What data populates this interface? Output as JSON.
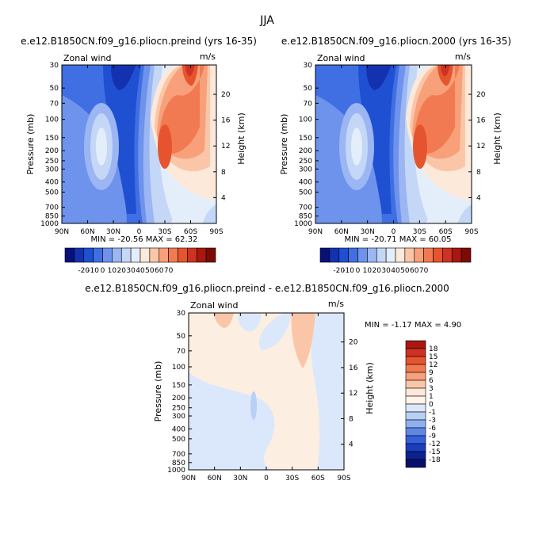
{
  "figure_title": "JJA",
  "chart_data": [
    {
      "type": "heatmap",
      "title": "e.e12.B1850CN.f09_g16.pliocn.preind (yrs 16-35)",
      "left_label": "Zonal wind",
      "right_label": "m/s",
      "stats": "MIN = -20.56   MAX = 62.32",
      "ylabel": "Pressure (mb)",
      "y2label": "Height (km)",
      "x_ticks": [
        "90N",
        "60N",
        "30N",
        "0",
        "30S",
        "60S",
        "90S"
      ],
      "y_ticks": [
        "30",
        "50",
        "70",
        "100",
        "150",
        "200",
        "250",
        "300",
        "400",
        "500",
        "700",
        "850",
        "1000"
      ],
      "y2_ticks": [
        "20",
        "16",
        "12",
        "8",
        "4"
      ],
      "colorbar_labels": [
        "-20",
        "-10",
        "0",
        "10",
        "20",
        "30",
        "40",
        "50",
        "60",
        "70"
      ],
      "colorbar_colors": [
        "#08107a",
        "#1432b0",
        "#1f50d2",
        "#3f6fe2",
        "#6e93ec",
        "#9bb6f2",
        "#c4d7f7",
        "#e4eefb",
        "#fde9da",
        "#fbc6a8",
        "#f7a07a",
        "#f27a52",
        "#e6542f",
        "#cf3220",
        "#a8180f",
        "#7d0a05"
      ],
      "ylim": [
        1000,
        30
      ],
      "xlim": [
        "90N",
        "90S"
      ]
    },
    {
      "type": "heatmap",
      "title": "e.e12.B1850CN.f09_g16.pliocn.2000 (yrs 16-35)",
      "left_label": "Zonal wind",
      "right_label": "m/s",
      "stats": "MIN = -20.71   MAX = 60.05",
      "ylabel": "Pressure (mb)",
      "y2label": "Height (km)",
      "x_ticks": [
        "90N",
        "60N",
        "30N",
        "0",
        "30S",
        "60S",
        "90S"
      ],
      "y_ticks": [
        "30",
        "50",
        "70",
        "100",
        "150",
        "200",
        "250",
        "300",
        "400",
        "500",
        "700",
        "850",
        "1000"
      ],
      "y2_ticks": [
        "20",
        "16",
        "12",
        "8",
        "4"
      ],
      "colorbar_labels": [
        "-20",
        "-10",
        "0",
        "10",
        "20",
        "30",
        "40",
        "50",
        "60",
        "70"
      ],
      "colorbar_colors": [
        "#08107a",
        "#1432b0",
        "#1f50d2",
        "#3f6fe2",
        "#6e93ec",
        "#9bb6f2",
        "#c4d7f7",
        "#e4eefb",
        "#fde9da",
        "#fbc6a8",
        "#f7a07a",
        "#f27a52",
        "#e6542f",
        "#cf3220",
        "#a8180f",
        "#7d0a05"
      ],
      "ylim": [
        1000,
        30
      ],
      "xlim": [
        "90N",
        "90S"
      ]
    },
    {
      "type": "heatmap",
      "title": "e.e12.B1850CN.f09_g16.pliocn.preind - e.e12.B1850CN.f09_g16.pliocn.2000",
      "left_label": "Zonal wind",
      "right_label": "m/s",
      "stats": "MIN =   -1.17   MAX =    4.90",
      "ylabel": "Pressure (mb)",
      "y2label": "Height (km)",
      "x_ticks": [
        "90N",
        "60N",
        "30N",
        "0",
        "30S",
        "60S",
        "90S"
      ],
      "y_ticks": [
        "30",
        "50",
        "70",
        "100",
        "150",
        "200",
        "250",
        "300",
        "400",
        "500",
        "700",
        "850",
        "1000"
      ],
      "y2_ticks": [
        "20",
        "16",
        "12",
        "8",
        "4"
      ],
      "colorbar_labels": [
        "18",
        "15",
        "12",
        "9",
        "6",
        "3",
        "1",
        "0",
        "-1",
        "-3",
        "-6",
        "-9",
        "-12",
        "-15",
        "-18"
      ],
      "colorbar_colors": [
        "#a8180f",
        "#cf3220",
        "#e6542f",
        "#f27a52",
        "#f7a07a",
        "#fbc6a8",
        "#fde9da",
        "#fff3ea",
        "#dbe8fb",
        "#b8cff6",
        "#8fb0ef",
        "#5f88e6",
        "#3562da",
        "#1a3ec0",
        "#0c228f",
        "#06106a"
      ],
      "ylim": [
        1000,
        30
      ],
      "xlim": [
        "90N",
        "90S"
      ]
    }
  ]
}
